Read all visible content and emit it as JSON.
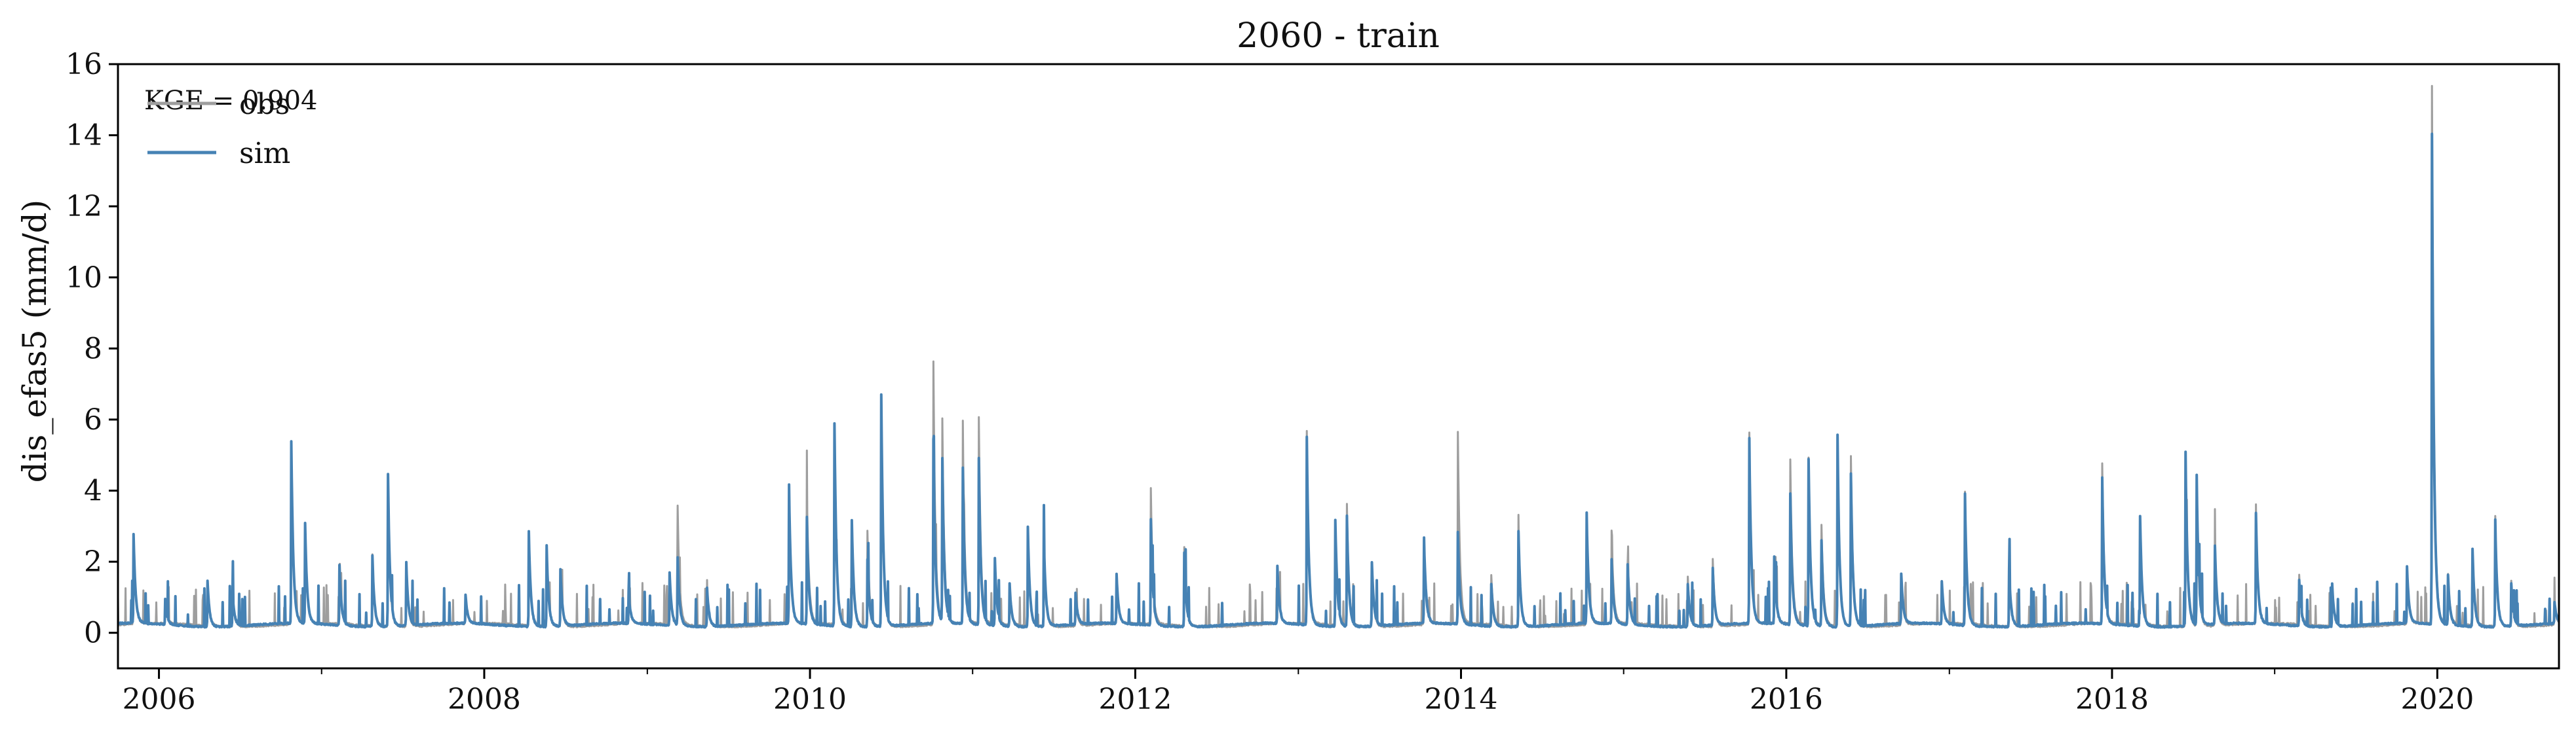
{
  "chart_data": {
    "type": "line",
    "title": "2060 - train",
    "xlabel": "",
    "ylabel": "dis_efas5 (mm/d)",
    "annotation": "KGE = 0.904",
    "xlim": [
      "2005-10-01",
      "2020-09-30"
    ],
    "ylim": [
      -1,
      16
    ],
    "y_ticks": [
      0,
      2,
      4,
      6,
      8,
      10,
      12,
      14,
      16
    ],
    "x_ticks_major": [
      "2006",
      "2008",
      "2010",
      "2012",
      "2014",
      "2016",
      "2018",
      "2020"
    ],
    "x_ticks_minor": [
      "2007",
      "2009",
      "2011",
      "2013",
      "2015",
      "2017",
      "2019"
    ],
    "grid": false,
    "legend": "top-left",
    "baseline": 0.2,
    "series": [
      {
        "name": "obs",
        "color": "#9e9e9e",
        "peaks": [
          [
            "2005-11-05",
            2.6
          ],
          [
            "2006-01-15",
            0.8
          ],
          [
            "2006-04-20",
            1.4
          ],
          [
            "2006-06-15",
            1.1
          ],
          [
            "2006-10-25",
            5.3
          ],
          [
            "2006-11-25",
            3.0
          ],
          [
            "2007-02-10",
            1.8
          ],
          [
            "2007-04-25",
            2.2
          ],
          [
            "2007-05-30",
            4.4
          ],
          [
            "2007-07-10",
            2.0
          ],
          [
            "2007-11-20",
            0.9
          ],
          [
            "2008-04-10",
            2.8
          ],
          [
            "2008-05-20",
            2.4
          ],
          [
            "2008-06-20",
            1.7
          ],
          [
            "2008-11-20",
            1.0
          ],
          [
            "2009-02-20",
            1.6
          ],
          [
            "2009-03-10",
            3.5
          ],
          [
            "2009-05-15",
            1.2
          ],
          [
            "2009-11-15",
            4.0
          ],
          [
            "2009-12-25",
            4.1
          ],
          [
            "2010-02-25",
            5.8
          ],
          [
            "2010-04-05",
            3.1
          ],
          [
            "2010-05-10",
            2.9
          ],
          [
            "2010-06-10",
            6.6
          ],
          [
            "2010-10-05",
            7.6
          ],
          [
            "2010-10-25",
            5.9
          ],
          [
            "2010-12-10",
            5.9
          ],
          [
            "2011-01-15",
            6.0
          ],
          [
            "2011-02-20",
            2.0
          ],
          [
            "2011-03-25",
            1.3
          ],
          [
            "2011-05-05",
            3.0
          ],
          [
            "2011-06-10",
            2.5
          ],
          [
            "2011-08-20",
            1.0
          ],
          [
            "2011-11-20",
            1.5
          ],
          [
            "2012-02-05",
            4.0
          ],
          [
            "2012-04-20",
            2.4
          ],
          [
            "2012-11-15",
            1.7
          ],
          [
            "2013-01-20",
            5.6
          ],
          [
            "2013-03-25",
            3.1
          ],
          [
            "2013-04-20",
            3.6
          ],
          [
            "2013-06-15",
            1.9
          ],
          [
            "2013-10-10",
            2.6
          ],
          [
            "2013-12-25",
            5.6
          ],
          [
            "2014-03-10",
            1.6
          ],
          [
            "2014-05-10",
            2.9
          ],
          [
            "2014-10-10",
            3.2
          ],
          [
            "2014-12-05",
            2.8
          ],
          [
            "2015-01-10",
            1.9
          ],
          [
            "2015-05-25",
            1.6
          ],
          [
            "2015-07-20",
            2.1
          ],
          [
            "2015-10-10",
            5.6
          ],
          [
            "2015-12-05",
            2.0
          ],
          [
            "2016-01-10",
            4.8
          ],
          [
            "2016-02-20",
            4.9
          ],
          [
            "2016-03-20",
            3.0
          ],
          [
            "2016-04-25",
            5.5
          ],
          [
            "2016-05-25",
            5.0
          ],
          [
            "2016-09-15",
            1.5
          ],
          [
            "2016-12-15",
            1.4
          ],
          [
            "2017-02-05",
            3.9
          ],
          [
            "2017-05-15",
            1.7
          ],
          [
            "2017-12-10",
            4.7
          ],
          [
            "2018-03-05",
            3.2
          ],
          [
            "2018-06-15",
            5.0
          ],
          [
            "2018-07-10",
            4.3
          ],
          [
            "2018-08-20",
            2.4
          ],
          [
            "2018-11-20",
            3.2
          ],
          [
            "2019-02-25",
            1.6
          ],
          [
            "2019-05-10",
            1.4
          ],
          [
            "2019-10-25",
            1.7
          ],
          [
            "2019-12-20",
            15.3
          ],
          [
            "2020-01-25",
            1.6
          ],
          [
            "2020-03-20",
            2.2
          ],
          [
            "2020-05-10",
            3.3
          ],
          [
            "2020-06-15",
            1.5
          ],
          [
            "2020-09-20",
            0.8
          ]
        ]
      },
      {
        "name": "sim",
        "color": "#4682b4",
        "peaks": [
          [
            "2005-11-05",
            2.7
          ],
          [
            "2006-01-15",
            0.9
          ],
          [
            "2006-04-20",
            1.5
          ],
          [
            "2006-06-15",
            1.2
          ],
          [
            "2006-10-25",
            5.3
          ],
          [
            "2006-11-25",
            3.0
          ],
          [
            "2007-02-10",
            1.9
          ],
          [
            "2007-04-25",
            2.2
          ],
          [
            "2007-05-30",
            4.5
          ],
          [
            "2007-07-10",
            2.0
          ],
          [
            "2007-11-20",
            1.0
          ],
          [
            "2008-04-10",
            2.9
          ],
          [
            "2008-05-20",
            2.5
          ],
          [
            "2008-06-20",
            1.8
          ],
          [
            "2008-11-20",
            1.1
          ],
          [
            "2009-02-20",
            1.7
          ],
          [
            "2009-03-10",
            2.1
          ],
          [
            "2009-05-15",
            1.3
          ],
          [
            "2009-11-15",
            4.1
          ],
          [
            "2009-12-25",
            3.2
          ],
          [
            "2010-02-25",
            5.9
          ],
          [
            "2010-04-05",
            3.2
          ],
          [
            "2010-05-10",
            2.1
          ],
          [
            "2010-06-10",
            6.7
          ],
          [
            "2010-10-05",
            5.4
          ],
          [
            "2010-10-25",
            4.8
          ],
          [
            "2010-12-10",
            4.6
          ],
          [
            "2011-01-15",
            4.9
          ],
          [
            "2011-02-20",
            2.1
          ],
          [
            "2011-03-25",
            1.4
          ],
          [
            "2011-05-05",
            3.0
          ],
          [
            "2011-06-10",
            2.6
          ],
          [
            "2011-08-20",
            1.1
          ],
          [
            "2011-11-20",
            1.6
          ],
          [
            "2012-02-05",
            3.2
          ],
          [
            "2012-04-20",
            2.3
          ],
          [
            "2012-11-15",
            1.8
          ],
          [
            "2013-01-20",
            5.5
          ],
          [
            "2013-03-25",
            3.2
          ],
          [
            "2013-04-20",
            3.3
          ],
          [
            "2013-06-15",
            2.0
          ],
          [
            "2013-10-10",
            2.6
          ],
          [
            "2013-12-25",
            2.8
          ],
          [
            "2014-03-10",
            1.4
          ],
          [
            "2014-05-10",
            2.9
          ],
          [
            "2014-10-10",
            3.3
          ],
          [
            "2014-12-05",
            2.0
          ],
          [
            "2015-01-10",
            1.9
          ],
          [
            "2015-05-25",
            1.4
          ],
          [
            "2015-07-20",
            1.8
          ],
          [
            "2015-10-10",
            5.4
          ],
          [
            "2015-12-05",
            2.1
          ],
          [
            "2016-01-10",
            3.9
          ],
          [
            "2016-02-20",
            4.9
          ],
          [
            "2016-03-20",
            2.6
          ],
          [
            "2016-04-25",
            5.6
          ],
          [
            "2016-05-25",
            4.5
          ],
          [
            "2016-09-15",
            1.6
          ],
          [
            "2016-12-15",
            1.4
          ],
          [
            "2017-02-05",
            3.9
          ],
          [
            "2017-05-15",
            1.8
          ],
          [
            "2017-12-10",
            4.3
          ],
          [
            "2018-03-05",
            3.3
          ],
          [
            "2018-06-15",
            5.1
          ],
          [
            "2018-07-10",
            4.4
          ],
          [
            "2018-08-20",
            2.4
          ],
          [
            "2018-11-20",
            3.3
          ],
          [
            "2019-02-25",
            1.5
          ],
          [
            "2019-05-10",
            1.4
          ],
          [
            "2019-10-25",
            1.8
          ],
          [
            "2019-12-20",
            14.0
          ],
          [
            "2020-01-25",
            1.6
          ],
          [
            "2020-03-20",
            2.4
          ],
          [
            "2020-05-10",
            3.2
          ],
          [
            "2020-06-15",
            1.4
          ],
          [
            "2020-09-20",
            0.8
          ]
        ]
      }
    ]
  }
}
